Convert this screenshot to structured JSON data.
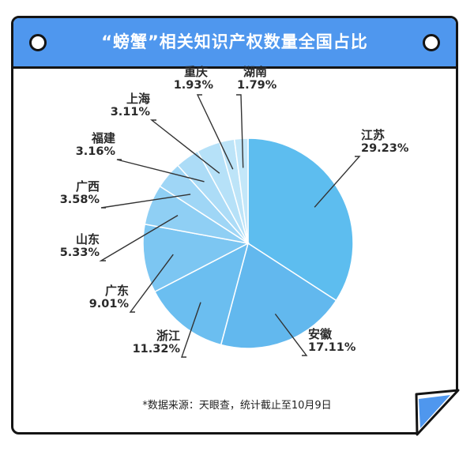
{
  "title": "“螃蟹”相关知识产权数量全国占比",
  "source": "*数据来源：天眼查，统计截止至10月9日",
  "chart_data": {
    "type": "pie",
    "title": "“螃蟹”相关知识产权数量全国占比",
    "unit": "%",
    "categories": [
      "江苏",
      "安徽",
      "浙江",
      "广东",
      "山东",
      "广西",
      "福建",
      "上海",
      "重庆",
      "湖南"
    ],
    "values": [
      29.23,
      17.11,
      11.32,
      9.01,
      5.33,
      3.58,
      3.16,
      3.11,
      1.93,
      1.79
    ],
    "labels": [
      "29.23%",
      "17.11%",
      "11.32%",
      "9.01%",
      "5.33%",
      "3.58%",
      "3.16%",
      "3.11%",
      "1.93%",
      "1.79%"
    ],
    "colors": [
      "#5dbdef",
      "#62b8ee",
      "#6bbef0",
      "#7cc6f2",
      "#8fcff4",
      "#9fd6f6",
      "#acdcf7",
      "#b6e1f8",
      "#bde4f8",
      "#c3e7f9"
    ]
  }
}
